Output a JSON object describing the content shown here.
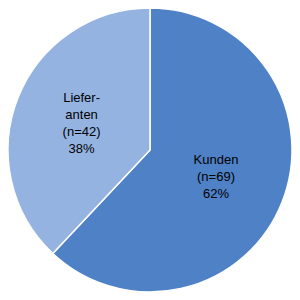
{
  "chart_data": {
    "type": "pie",
    "categories": [
      "Kunden",
      "Liefer-\nanten"
    ],
    "values": [
      62,
      38
    ],
    "value_labels": [
      "(n=69)\n62%",
      "(n=42)\n38%"
    ],
    "colors": [
      "#4f81c7",
      "#95b3e0"
    ],
    "data_labels": true
  }
}
